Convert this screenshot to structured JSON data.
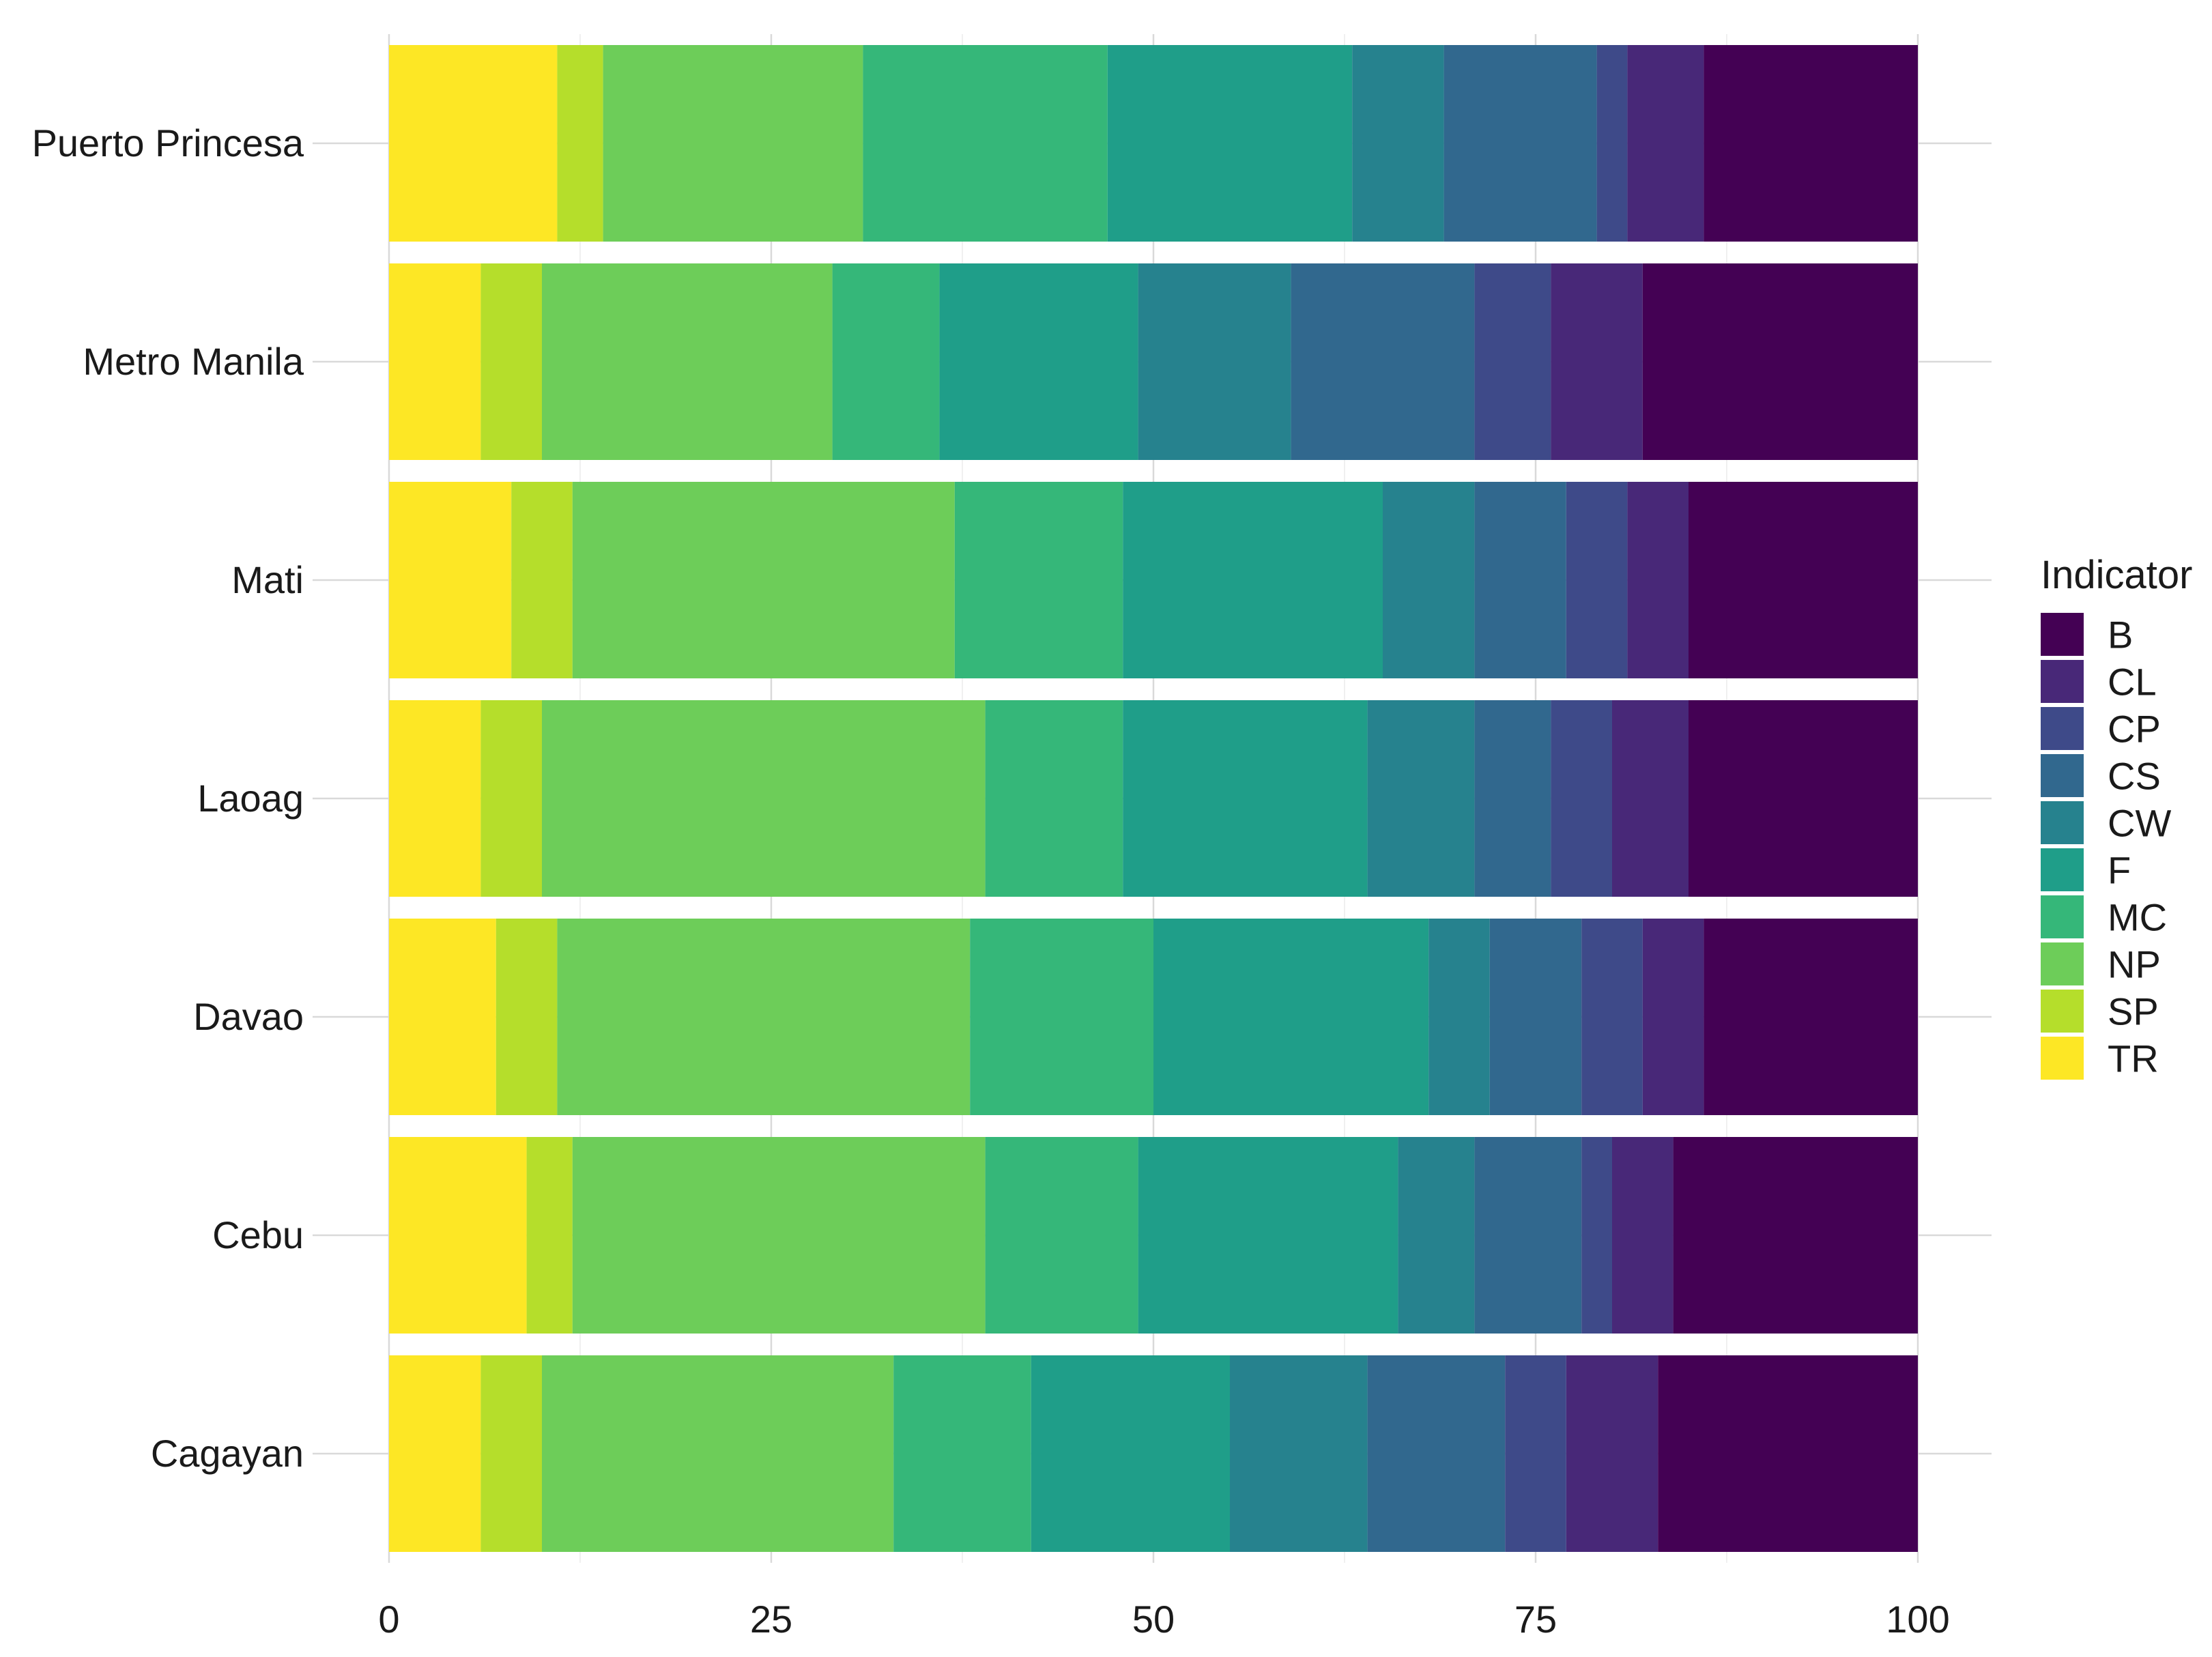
{
  "chart_data": {
    "type": "bar",
    "orientation": "horizontal",
    "stacked": true,
    "title": "",
    "xlabel": "",
    "ylabel": "",
    "xlim": [
      0,
      100
    ],
    "x_ticks": [
      0,
      25,
      50,
      75,
      100
    ],
    "grid": true,
    "legend": {
      "title": "Indicator",
      "placement": "right"
    },
    "categories": [
      "Puerto Princesa",
      "Metro Manila",
      "Mati",
      "Laoag",
      "Davao",
      "Cebu",
      "Cagayan"
    ],
    "series": [
      {
        "name": "TR",
        "color": "#FDE725",
        "values": [
          11,
          6,
          8,
          6,
          7,
          9,
          6
        ]
      },
      {
        "name": "SP",
        "color": "#B5DE2B",
        "values": [
          3,
          4,
          4,
          4,
          4,
          3,
          4
        ]
      },
      {
        "name": "NP",
        "color": "#6DCD59",
        "values": [
          17,
          19,
          25,
          29,
          27,
          27,
          23
        ]
      },
      {
        "name": "MC",
        "color": "#35B779",
        "values": [
          16,
          7,
          11,
          9,
          12,
          10,
          9
        ]
      },
      {
        "name": "F",
        "color": "#1F9E89",
        "values": [
          16,
          13,
          17,
          16,
          18,
          17,
          13
        ]
      },
      {
        "name": "CW",
        "color": "#26828E",
        "values": [
          6,
          10,
          6,
          7,
          4,
          5,
          9
        ]
      },
      {
        "name": "CS",
        "color": "#31688E",
        "values": [
          10,
          12,
          6,
          5,
          6,
          7,
          9
        ]
      },
      {
        "name": "CP",
        "color": "#3E4A89",
        "values": [
          2,
          5,
          4,
          4,
          4,
          2,
          4
        ]
      },
      {
        "name": "CL",
        "color": "#482878",
        "values": [
          5,
          6,
          4,
          5,
          4,
          4,
          6
        ]
      },
      {
        "name": "B",
        "color": "#440154",
        "values": [
          14,
          18,
          15,
          15,
          14,
          16,
          17
        ]
      }
    ]
  }
}
